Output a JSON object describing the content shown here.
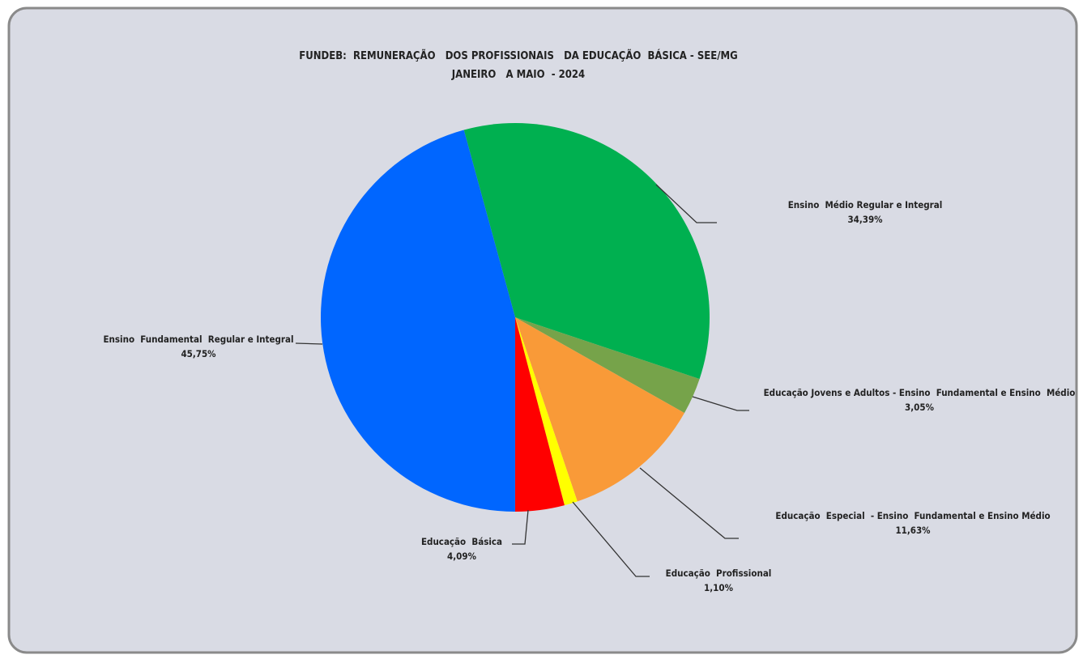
{
  "chart_data": {
    "type": "pie",
    "title": "FUNDEB:  REMUNERAÇÃO   DOS PROFISSIONAIS   DA EDUCAÇÃO  BÁSICA - SEE/MG",
    "subtitle": "JANEIRO   A MAIO  - 2024",
    "categories": [
      "Ensino  Médio Regular e Integral",
      "Educação Jovens e Adultos - Ensino  Fundamental e Ensino  Médio",
      "Educação  Especial  - Ensino  Fundamental e Ensino Médio",
      "Educação  Profissional",
      "Educação  Básica",
      "Ensino  Fundamental  Regular e Integral"
    ],
    "values": [
      34.39,
      3.05,
      11.63,
      1.1,
      4.09,
      45.75
    ],
    "value_labels": [
      "34,39%",
      "3,05%",
      "11,63%",
      "1,10%",
      "4,09%",
      "45,75%"
    ],
    "colors": [
      "#00b050",
      "#76a34a",
      "#f99a38",
      "#ffff00",
      "#ff0000",
      "#0066ff"
    ]
  }
}
